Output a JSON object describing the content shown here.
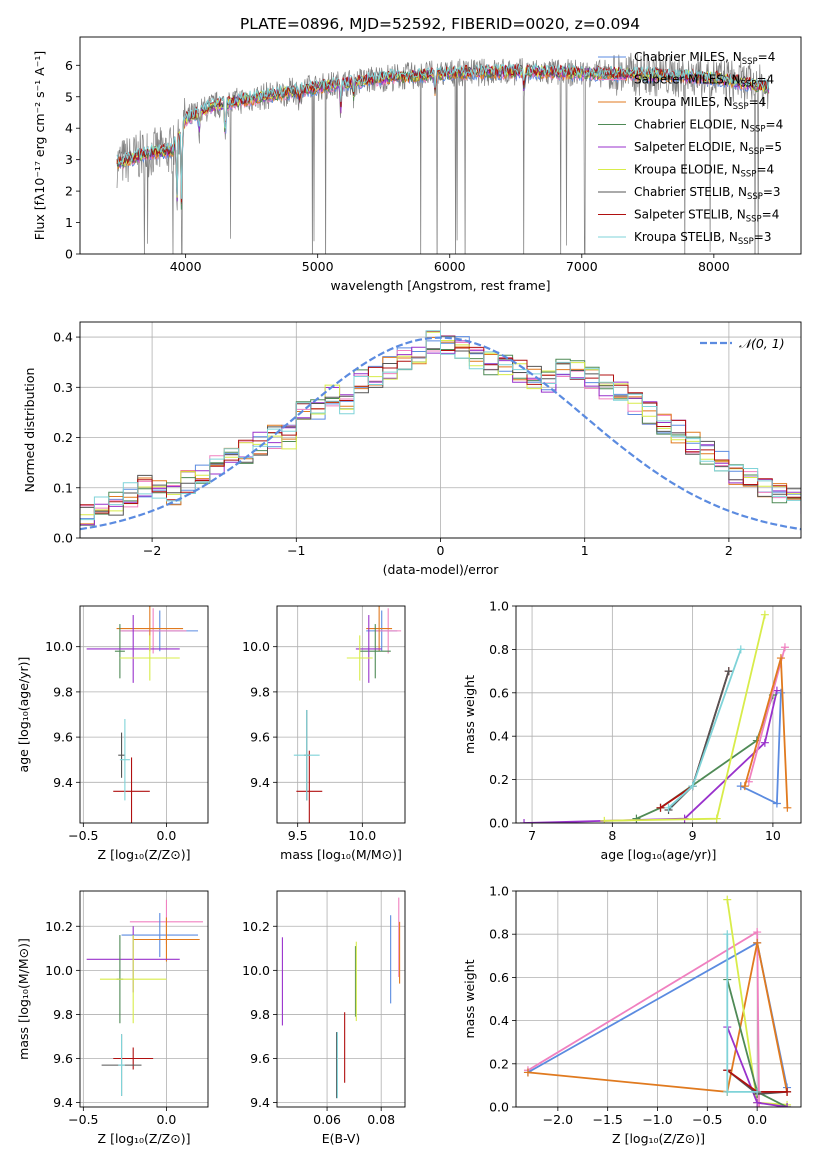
{
  "figure_title": "PLATE=0896, MJD=52592, FIBERID=0020, z=0.094",
  "colors": {
    "chabrier_miles": "#5b8be0",
    "salpeter_miles": "#f081c0",
    "kroupa_miles": "#e07a1f",
    "chabrier_elodie": "#4f8a56",
    "salpeter_elodie": "#9932cc",
    "kroupa_elodie": "#d8ec4a",
    "chabrier_stelib": "#555555",
    "salpeter_stelib": "#b01010",
    "kroupa_stelib": "#7fd3d8",
    "data": "#808080",
    "gaussian": "#5b8be0",
    "grid": "#b0b0b0"
  },
  "chart_data": [
    {
      "id": "spectrum",
      "type": "line",
      "xlabel": "wavelength [Angstrom, rest frame]",
      "ylabel": "Flux [fλ10⁻¹⁷ erg cm⁻² s⁻¹ A⁻¹]",
      "xlim": [
        3200,
        8660
      ],
      "ylim": [
        0,
        6.9
      ],
      "xticks": [
        4000,
        5000,
        6000,
        7000,
        8000
      ],
      "yticks": [
        0,
        1,
        2,
        3,
        4,
        5,
        6
      ],
      "grid": false,
      "legend_position": "right",
      "legend": [
        {
          "label": "Chabrier MILES, N",
          "sub": "SSP",
          "suffix": "=4",
          "color": "chabrier_miles"
        },
        {
          "label": "Salpeter MILES, N",
          "sub": "SSP",
          "suffix": "=4",
          "color": "salpeter_miles"
        },
        {
          "label": "Kroupa MILES, N",
          "sub": "SSP",
          "suffix": "=4",
          "color": "kroupa_miles"
        },
        {
          "label": "Chabrier ELODIE, N",
          "sub": "SSP",
          "suffix": "=4",
          "color": "chabrier_elodie"
        },
        {
          "label": "Salpeter ELODIE, N",
          "sub": "SSP",
          "suffix": "=5",
          "color": "salpeter_elodie"
        },
        {
          "label": "Kroupa ELODIE, N",
          "sub": "SSP",
          "suffix": "=4",
          "color": "kroupa_elodie"
        },
        {
          "label": "Chabrier STELIB, N",
          "sub": "SSP",
          "suffix": "=3",
          "color": "chabrier_stelib"
        },
        {
          "label": "Salpeter STELIB, N",
          "sub": "SSP",
          "suffix": "=4",
          "color": "salpeter_stelib"
        },
        {
          "label": "Kroupa STELIB, N",
          "sub": "SSP",
          "suffix": "=3",
          "color": "kroupa_stelib"
        }
      ],
      "continuum": [
        [
          3500,
          2.9
        ],
        [
          3700,
          3.2
        ],
        [
          3900,
          3.3
        ],
        [
          4000,
          4.3
        ],
        [
          4200,
          4.7
        ],
        [
          4500,
          4.95
        ],
        [
          5000,
          5.3
        ],
        [
          5500,
          5.6
        ],
        [
          6000,
          5.75
        ],
        [
          6500,
          5.8
        ],
        [
          7000,
          5.75
        ],
        [
          7500,
          5.7
        ],
        [
          8000,
          5.6
        ],
        [
          8400,
          5.3
        ]
      ],
      "absorption_lines": [
        [
          3934,
          1.6
        ],
        [
          3969,
          1.5
        ],
        [
          4102,
          3.9
        ],
        [
          4300,
          3.6
        ],
        [
          4861,
          4.8
        ],
        [
          5175,
          4.6
        ],
        [
          5270,
          5.0
        ],
        [
          5890,
          5.1
        ],
        [
          6563,
          5.2
        ],
        [
          8500,
          5.0
        ],
        [
          8542,
          4.9
        ]
      ]
    },
    {
      "id": "residuals",
      "type": "bar",
      "xlabel": "(data-model)/error",
      "ylabel": "Normed distribution",
      "xlim": [
        -2.5,
        2.5
      ],
      "ylim": [
        0,
        0.43
      ],
      "xticks": [
        -2,
        -1,
        0,
        1,
        2
      ],
      "yticks": [
        0.0,
        0.1,
        0.2,
        0.3,
        0.4
      ],
      "grid": true,
      "legend_position": "top-right",
      "legend_label": "𝒩(0, 1)",
      "bin_width": 0.1,
      "base_histogram": [
        0.02,
        0.03,
        0.035,
        0.04,
        0.045,
        0.05,
        0.06,
        0.07,
        0.085,
        0.1,
        0.1,
        0.09,
        0.11,
        0.13,
        0.15,
        0.16,
        0.17,
        0.19,
        0.2,
        0.2,
        0.25,
        0.26,
        0.28,
        0.27,
        0.31,
        0.32,
        0.34,
        0.36,
        0.37,
        0.39,
        0.38,
        0.38,
        0.36,
        0.35,
        0.34,
        0.33,
        0.32,
        0.31,
        0.34,
        0.33,
        0.32,
        0.3,
        0.29,
        0.27,
        0.25,
        0.23,
        0.21,
        0.19,
        0.17,
        0.15,
        0.13,
        0.12,
        0.1,
        0.09,
        0.08,
        0.07,
        0.06,
        0.05,
        0.05,
        0.045
      ]
    },
    {
      "id": "age_vs_Z",
      "type": "scatter",
      "xlabel": "Z [log₁₀(Z/Z⊙)]",
      "ylabel": "age  [log₁₀(age/yr)]",
      "xlim": [
        -0.52,
        0.25
      ],
      "ylim": [
        9.22,
        10.18
      ],
      "xticks": [
        -0.5,
        0.0
      ],
      "yticks": [
        9.4,
        9.6,
        9.8,
        10.0
      ],
      "grid": true,
      "points": [
        {
          "color": "chabrier_miles",
          "x": -0.04,
          "xerr": 0.23,
          "y": 10.07,
          "yerr": 0.09
        },
        {
          "color": "salpeter_miles",
          "x": -0.08,
          "xerr": 0.2,
          "y": 10.07,
          "yerr": 0.1
        },
        {
          "color": "kroupa_miles",
          "x": -0.1,
          "xerr": 0.2,
          "y": 10.08,
          "yerr": 0.1
        },
        {
          "color": "chabrier_elodie",
          "x": -0.28,
          "xerr": 0.03,
          "y": 9.98,
          "yerr": 0.12
        },
        {
          "color": "salpeter_elodie",
          "x": -0.2,
          "xerr": 0.28,
          "y": 9.99,
          "yerr": 0.15
        },
        {
          "color": "kroupa_elodie",
          "x": -0.1,
          "xerr": 0.18,
          "y": 9.95,
          "yerr": 0.1
        },
        {
          "color": "chabrier_stelib",
          "x": -0.27,
          "xerr": 0.02,
          "y": 9.52,
          "yerr": 0.1
        },
        {
          "color": "salpeter_stelib",
          "x": -0.21,
          "xerr": 0.11,
          "y": 9.36,
          "yerr": 0.15
        },
        {
          "color": "kroupa_stelib",
          "x": -0.25,
          "xerr": 0.03,
          "y": 9.5,
          "yerr": 0.18
        }
      ]
    },
    {
      "id": "age_vs_mass",
      "type": "scatter",
      "xlabel": "mass [log₁₀(M/M⊙)]",
      "xlim": [
        9.34,
        10.33
      ],
      "ylim": [
        9.22,
        10.18
      ],
      "xticks": [
        9.5,
        10.0
      ],
      "yticks": [
        9.4,
        9.6,
        9.8,
        10.0
      ],
      "grid": true,
      "points": [
        {
          "color": "chabrier_miles",
          "x": 10.15,
          "xerr": 0.12,
          "y": 10.07,
          "yerr": 0.09
        },
        {
          "color": "salpeter_miles",
          "x": 10.2,
          "xerr": 0.1,
          "y": 10.07,
          "yerr": 0.1
        },
        {
          "color": "kroupa_miles",
          "x": 10.13,
          "xerr": 0.1,
          "y": 10.08,
          "yerr": 0.1
        },
        {
          "color": "chabrier_elodie",
          "x": 10.1,
          "xerr": 0.12,
          "y": 9.98,
          "yerr": 0.12
        },
        {
          "color": "salpeter_elodie",
          "x": 10.05,
          "xerr": 0.1,
          "y": 9.99,
          "yerr": 0.15
        },
        {
          "color": "kroupa_elodie",
          "x": 9.98,
          "xerr": 0.1,
          "y": 9.95,
          "yerr": 0.1
        },
        {
          "color": "chabrier_stelib",
          "x": 9.57,
          "xerr": 0.02,
          "y": 9.52,
          "yerr": 0.2
        },
        {
          "color": "salpeter_stelib",
          "x": 9.59,
          "xerr": 0.1,
          "y": 9.36,
          "yerr": 0.18
        },
        {
          "color": "kroupa_stelib",
          "x": 9.57,
          "xerr": 0.1,
          "y": 9.52,
          "yerr": 0.2
        }
      ]
    },
    {
      "id": "weight_vs_age",
      "type": "line",
      "xlabel": "age  [log₁₀(age/yr)]",
      "ylabel": "mass weight",
      "xlim": [
        6.8,
        10.35
      ],
      "ylim": [
        0,
        1.0
      ],
      "xticks": [
        7,
        8,
        9,
        10
      ],
      "yticks": [
        0.0,
        0.2,
        0.4,
        0.6,
        0.8,
        1.0
      ],
      "grid": true,
      "series": [
        {
          "color": "salpeter_elodie",
          "x": [
            6.9,
            8.9,
            9.9,
            10.05
          ],
          "y": [
            0.0,
            0.02,
            0.37,
            0.61
          ]
        },
        {
          "color": "chabrier_elodie",
          "x": [
            8.3,
            8.6,
            9.8,
            10.0
          ],
          "y": [
            0.02,
            0.07,
            0.38,
            0.59
          ]
        },
        {
          "color": "salpeter_stelib",
          "x": [
            8.6,
            9.0,
            9.45
          ],
          "y": [
            0.07,
            0.17,
            0.7
          ]
        },
        {
          "color": "chabrier_stelib",
          "x": [
            8.7,
            9.0,
            9.45
          ],
          "y": [
            0.06,
            0.17,
            0.7
          ]
        },
        {
          "color": "kroupa_stelib",
          "x": [
            8.7,
            9.0,
            9.6
          ],
          "y": [
            0.07,
            0.17,
            0.8
          ]
        },
        {
          "color": "kroupa_elodie",
          "x": [
            7.9,
            9.3,
            9.9
          ],
          "y": [
            0.01,
            0.02,
            0.96
          ]
        },
        {
          "color": "chabrier_miles",
          "x": [
            9.6,
            10.05,
            10.1
          ],
          "y": [
            0.17,
            0.09,
            0.6
          ]
        },
        {
          "color": "salpeter_miles",
          "x": [
            9.7,
            10.15
          ],
          "y": [
            0.19,
            0.81
          ]
        },
        {
          "color": "kroupa_miles",
          "x": [
            9.65,
            10.1,
            10.18
          ],
          "y": [
            0.17,
            0.76,
            0.07
          ]
        }
      ]
    },
    {
      "id": "mass_vs_Z",
      "type": "scatter",
      "xlabel": "Z [log₁₀(Z/Z⊙)]",
      "ylabel": "mass [log₁₀(M/M⊙)]",
      "xlim": [
        -0.52,
        0.25
      ],
      "ylim": [
        9.38,
        10.36
      ],
      "xticks": [
        -0.5,
        0.0
      ],
      "yticks": [
        9.4,
        9.6,
        9.8,
        10.0,
        10.2
      ],
      "grid": true,
      "points": [
        {
          "color": "salpeter_miles",
          "x": 0.0,
          "xerr": 0.22,
          "y": 10.22,
          "yerr": 0.1
        },
        {
          "color": "chabrier_miles",
          "x": -0.04,
          "xerr": 0.23,
          "y": 10.16,
          "yerr": 0.1
        },
        {
          "color": "kroupa_miles",
          "x": 0.0,
          "xerr": 0.2,
          "y": 10.14,
          "yerr": 0.1
        },
        {
          "color": "salpeter_elodie",
          "x": -0.2,
          "xerr": 0.28,
          "y": 10.05,
          "yerr": 0.15
        },
        {
          "color": "chabrier_elodie",
          "x": -0.28,
          "xerr": 0.02,
          "y": 9.96,
          "yerr": 0.2
        },
        {
          "color": "kroupa_elodie",
          "x": -0.2,
          "xerr": 0.2,
          "y": 9.96,
          "yerr": 0.2
        },
        {
          "color": "salpeter_stelib",
          "x": -0.2,
          "xerr": 0.12,
          "y": 9.6,
          "yerr": 0.05
        },
        {
          "color": "chabrier_stelib",
          "x": -0.27,
          "xerr": 0.12,
          "y": 9.57,
          "yerr": 0.14
        },
        {
          "color": "kroupa_stelib",
          "x": -0.27,
          "xerr": 0.02,
          "y": 9.57,
          "yerr": 0.14
        }
      ]
    },
    {
      "id": "mass_vs_ebv",
      "type": "scatter",
      "xlabel": "E(B-V)",
      "xlim": [
        0.0415,
        0.0888
      ],
      "ylim": [
        9.38,
        10.36
      ],
      "xticks": [
        0.06,
        0.08
      ],
      "yticks": [
        9.4,
        9.6,
        9.8,
        10.0,
        10.2
      ],
      "grid": true,
      "points": [
        {
          "color": "salpeter_elodie",
          "x": 0.0435,
          "y": 9.95,
          "yerr": 0.2
        },
        {
          "color": "chabrier_stelib",
          "x": 0.0635,
          "y": 9.57,
          "yerr": 0.15
        },
        {
          "color": "kroupa_stelib",
          "x": 0.0638,
          "y": 9.57,
          "yerr": 0.15
        },
        {
          "color": "salpeter_stelib",
          "x": 0.0665,
          "y": 9.65,
          "yerr": 0.16
        },
        {
          "color": "chabrier_elodie",
          "x": 0.0705,
          "y": 9.95,
          "yerr": 0.16
        },
        {
          "color": "kroupa_elodie",
          "x": 0.0708,
          "y": 9.95,
          "yerr": 0.18
        },
        {
          "color": "chabrier_miles",
          "x": 0.0835,
          "y": 10.05,
          "yerr": 0.2
        },
        {
          "color": "salpeter_miles",
          "x": 0.0865,
          "y": 10.15,
          "yerr": 0.18
        },
        {
          "color": "kroupa_miles",
          "x": 0.0868,
          "y": 10.08,
          "yerr": 0.14
        }
      ]
    },
    {
      "id": "weight_vs_Z",
      "type": "line",
      "xlabel": "Z [log₁₀(Z/Z⊙)]",
      "ylabel": "mass weight",
      "xlim": [
        -2.42,
        0.44
      ],
      "ylim": [
        0,
        1.0
      ],
      "xticks": [
        -2.0,
        -1.5,
        -1.0,
        -0.5,
        0.0
      ],
      "yticks": [
        0.0,
        0.2,
        0.4,
        0.6,
        0.8,
        1.0
      ],
      "grid": true,
      "series": [
        {
          "color": "salpeter_miles",
          "x": [
            -2.3,
            0.0,
            0.02
          ],
          "y": [
            0.17,
            0.81,
            0.0
          ]
        },
        {
          "color": "chabrier_miles",
          "x": [
            -2.3,
            0.0,
            0.3
          ],
          "y": [
            0.16,
            0.76,
            0.09
          ]
        },
        {
          "color": "kroupa_miles",
          "x": [
            -2.3,
            -0.3,
            0.0,
            0.3
          ],
          "y": [
            0.16,
            0.07,
            0.76,
            0.07
          ]
        },
        {
          "color": "kroupa_elodie",
          "x": [
            -0.3,
            0.0,
            0.3
          ],
          "y": [
            0.96,
            0.02,
            0.01
          ]
        },
        {
          "color": "chabrier_elodie",
          "x": [
            -0.3,
            0.0,
            0.3
          ],
          "y": [
            0.59,
            0.07,
            0.0
          ]
        },
        {
          "color": "salpeter_elodie",
          "x": [
            -0.3,
            0.0,
            0.3
          ],
          "y": [
            0.37,
            0.02,
            0.0
          ]
        },
        {
          "color": "chabrier_stelib",
          "x": [
            -0.3,
            0.0,
            0.3
          ],
          "y": [
            0.17,
            0.06,
            0.07
          ]
        },
        {
          "color": "salpeter_stelib",
          "x": [
            -0.3,
            0.0,
            0.3
          ],
          "y": [
            0.17,
            0.07,
            0.07
          ]
        },
        {
          "color": "kroupa_stelib",
          "x": [
            -0.3,
            -0.3,
            0.0
          ],
          "y": [
            0.8,
            0.07,
            0.07
          ]
        }
      ]
    }
  ]
}
